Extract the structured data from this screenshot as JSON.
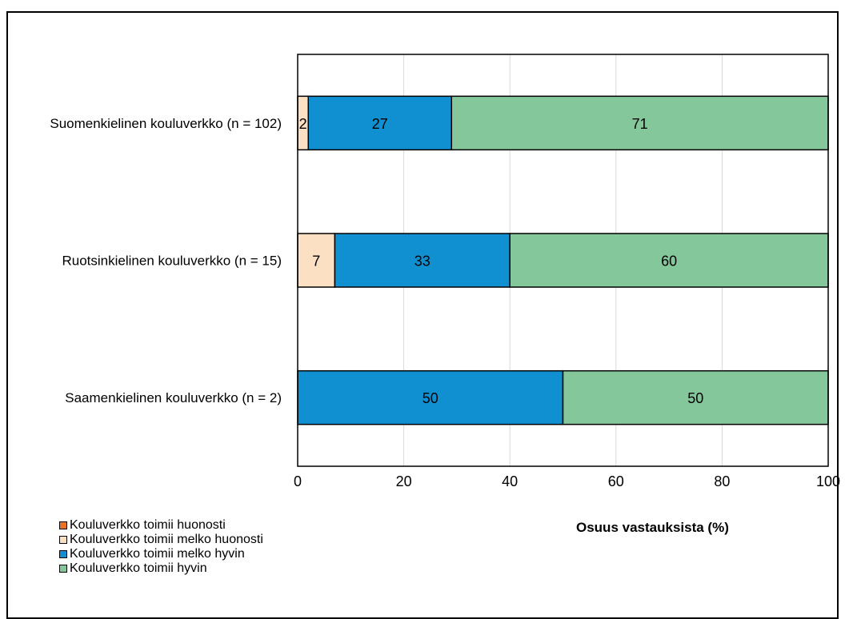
{
  "chart_data": {
    "type": "bar",
    "orientation": "horizontal",
    "stacked": true,
    "categories": [
      "Suomenkielinen kouluverkko (n = 102)",
      "Ruotsinkielinen kouluverkko (n = 15)",
      "Saamenkielinen kouluverkko (n = 2)"
    ],
    "series": [
      {
        "name": "Kouluverkko toimii huonosti",
        "color": "#e8722c",
        "values": [
          0,
          0,
          0
        ]
      },
      {
        "name": "Kouluverkko toimii melko huonosti",
        "color": "#fbe0c4",
        "values": [
          2,
          7,
          0
        ]
      },
      {
        "name": "Kouluverkko toimii melko hyvin",
        "color": "#1090d0",
        "values": [
          27,
          33,
          50
        ]
      },
      {
        "name": "Kouluverkko toimii hyvin",
        "color": "#84c79a",
        "values": [
          71,
          60,
          50
        ]
      }
    ],
    "xlabel": "Osuus vastauksista (%)",
    "xlim": [
      0,
      100
    ],
    "xticks": [
      "0",
      "20",
      "40",
      "60",
      "80",
      "100"
    ],
    "grid": true,
    "legend_position": "bottom-left"
  }
}
